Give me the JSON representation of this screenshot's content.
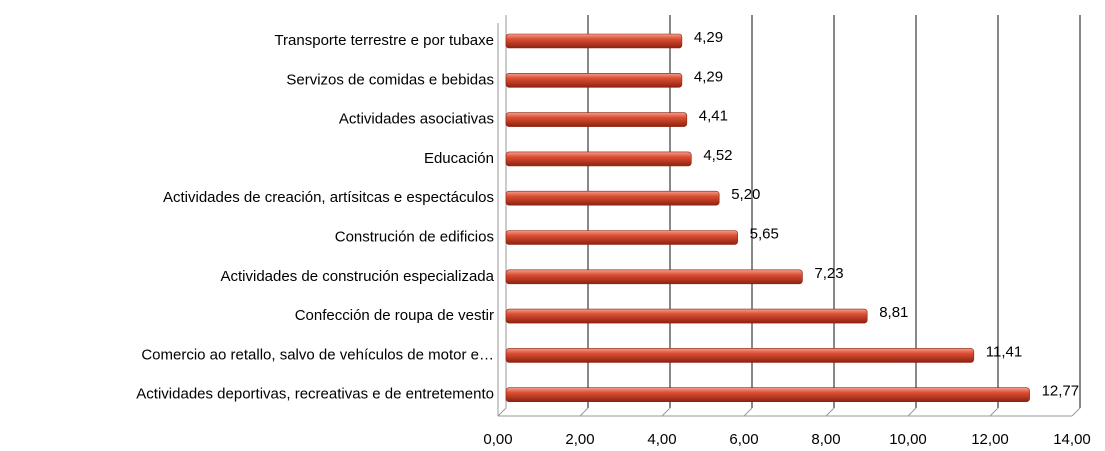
{
  "chart_data": {
    "type": "bar",
    "orientation": "horizontal",
    "categories": [
      "Transporte terrestre e por tubaxe",
      "Servizos de comidas e bebidas",
      "Actividades asociativas",
      "Educación",
      "Actividades de creación, artísitcas e espectáculos",
      "Construción de edificios",
      "Actividades de construción especializada",
      "Confección de roupa de vestir",
      "Comercio ao retallo, salvo de vehículos de motor e…",
      "Actividades deportivas, recreativas e de entretemento"
    ],
    "values": [
      4.29,
      4.29,
      4.41,
      4.52,
      5.2,
      5.65,
      7.23,
      8.81,
      11.41,
      12.77
    ],
    "value_labels": [
      "4,29",
      "4,29",
      "4,41",
      "4,52",
      "5,20",
      "5,65",
      "7,23",
      "8,81",
      "11,41",
      "12,77"
    ],
    "color": "#d0452c",
    "xlim": [
      0,
      14
    ],
    "xticks": [
      {
        "value": 0,
        "label": "0,00"
      },
      {
        "value": 2,
        "label": "2,00"
      },
      {
        "value": 4,
        "label": "4,00"
      },
      {
        "value": 6,
        "label": "6,00"
      },
      {
        "value": 8,
        "label": "8,00"
      },
      {
        "value": 10,
        "label": "10,00"
      },
      {
        "value": 12,
        "label": "12,00"
      },
      {
        "value": 14,
        "label": "14,00"
      }
    ],
    "grid": true
  }
}
